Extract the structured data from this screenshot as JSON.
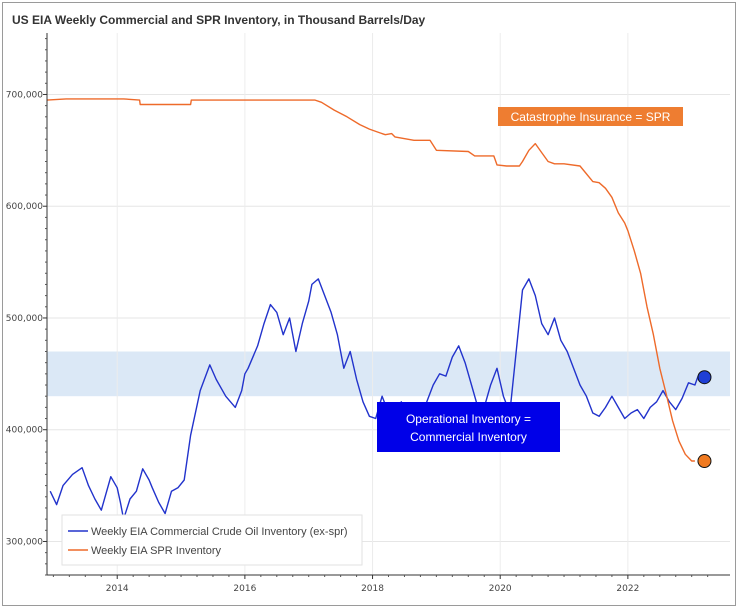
{
  "chart_data": {
    "type": "line",
    "title": "US EIA Weekly Commercial and SPR Inventory, in Thousand Barrels/Day",
    "xlabel": "",
    "ylabel": "",
    "xlim": [
      2012.9,
      2023.6
    ],
    "ylim": [
      270000,
      755000
    ],
    "x_ticks": [
      2014,
      2016,
      2018,
      2020,
      2022
    ],
    "x_tick_labels": [
      "2014",
      "2016",
      "2018",
      "2020",
      "2022"
    ],
    "y_ticks": [
      300000,
      400000,
      500000,
      600000,
      700000
    ],
    "y_tick_labels": [
      "300,000",
      "400,000",
      "500,000",
      "600,000",
      "700,000"
    ],
    "grid": true,
    "legend_position": "bottom-left",
    "highlight_band": {
      "y_from": 430000,
      "y_to": 470000,
      "color": "#dbe8f6"
    },
    "series": [
      {
        "name": "Weekly EIA Commercial Crude Oil Inventory (ex-spr)",
        "color": "#2233cc",
        "x": [
          2012.95,
          2013.05,
          2013.15,
          2013.3,
          2013.45,
          2013.55,
          2013.65,
          2013.75,
          2013.9,
          2014.0,
          2014.05,
          2014.1,
          2014.2,
          2014.3,
          2014.4,
          2014.5,
          2014.55,
          2014.65,
          2014.75,
          2014.85,
          2014.95,
          2015.05,
          2015.15,
          2015.3,
          2015.45,
          2015.55,
          2015.7,
          2015.85,
          2015.95,
          2016.0,
          2016.05,
          2016.2,
          2016.3,
          2016.4,
          2016.5,
          2016.6,
          2016.7,
          2016.8,
          2016.9,
          2017.0,
          2017.05,
          2017.15,
          2017.25,
          2017.35,
          2017.45,
          2017.55,
          2017.65,
          2017.75,
          2017.85,
          2017.95,
          2018.05,
          2018.15,
          2018.25,
          2018.35,
          2018.45,
          2018.55,
          2018.65,
          2018.75,
          2018.85,
          2018.95,
          2019.05,
          2019.15,
          2019.25,
          2019.35,
          2019.45,
          2019.55,
          2019.65,
          2019.75,
          2019.85,
          2019.95,
          2020.05,
          2020.15,
          2020.25,
          2020.35,
          2020.45,
          2020.55,
          2020.65,
          2020.75,
          2020.85,
          2020.95,
          2021.05,
          2021.15,
          2021.25,
          2021.35,
          2021.45,
          2021.55,
          2021.65,
          2021.75,
          2021.85,
          2021.95,
          2022.05,
          2022.15,
          2022.25,
          2022.35,
          2022.45,
          2022.55,
          2022.65,
          2022.75,
          2022.85,
          2022.95,
          2023.05,
          2023.1,
          2023.15
        ],
        "y": [
          345000,
          333000,
          350000,
          360000,
          366000,
          350000,
          338000,
          328000,
          358000,
          348000,
          335000,
          320000,
          338000,
          345000,
          365000,
          355000,
          348000,
          335000,
          325000,
          345000,
          348000,
          355000,
          395000,
          435000,
          458000,
          445000,
          430000,
          420000,
          435000,
          450000,
          455000,
          475000,
          495000,
          512000,
          505000,
          485000,
          500000,
          470000,
          495000,
          515000,
          530000,
          535000,
          520000,
          505000,
          485000,
          455000,
          470000,
          445000,
          425000,
          412000,
          410000,
          430000,
          415000,
          412000,
          425000,
          405000,
          410000,
          395000,
          425000,
          440000,
          450000,
          448000,
          465000,
          475000,
          460000,
          440000,
          420000,
          420000,
          440000,
          455000,
          430000,
          415000,
          470000,
          525000,
          535000,
          520000,
          495000,
          485000,
          500000,
          480000,
          470000,
          455000,
          440000,
          430000,
          415000,
          412000,
          420000,
          430000,
          420000,
          410000,
          415000,
          418000,
          410000,
          420000,
          425000,
          435000,
          425000,
          418000,
          428000,
          442000,
          440000,
          448000,
          447000
        ]
      },
      {
        "name": "Weekly EIA SPR Inventory",
        "color": "#ee6a2a",
        "x": [
          2012.9,
          2013.2,
          2013.5,
          2013.8,
          2014.1,
          2014.35,
          2014.36,
          2014.9,
          2015.15,
          2015.16,
          2016.2,
          2016.4,
          2016.8,
          2017.1,
          2017.2,
          2017.4,
          2017.6,
          2017.8,
          2017.95,
          2018.1,
          2018.2,
          2018.3,
          2018.35,
          2018.55,
          2018.65,
          2018.9,
          2019.0,
          2019.5,
          2019.6,
          2019.9,
          2019.95,
          2020.1,
          2020.3,
          2020.35,
          2020.45,
          2020.55,
          2020.65,
          2020.75,
          2020.85,
          2021.0,
          2021.25,
          2021.45,
          2021.55,
          2021.65,
          2021.75,
          2021.85,
          2021.95,
          2022.0,
          2022.1,
          2022.2,
          2022.3,
          2022.4,
          2022.5,
          2022.6,
          2022.7,
          2022.8,
          2022.9,
          2023.0,
          2023.05
        ],
        "y": [
          695000,
          696000,
          696000,
          696000,
          696000,
          695000,
          691000,
          691000,
          691000,
          695000,
          695000,
          695000,
          695000,
          695000,
          693000,
          686000,
          680000,
          673000,
          669000,
          666000,
          664000,
          665000,
          662000,
          660000,
          659000,
          659000,
          650000,
          649000,
          645000,
          645000,
          637000,
          636000,
          636000,
          640000,
          650000,
          656000,
          648000,
          640000,
          638000,
          638000,
          636000,
          622000,
          621000,
          616000,
          608000,
          594000,
          585000,
          578000,
          560000,
          540000,
          510000,
          485000,
          455000,
          432000,
          408000,
          390000,
          378000,
          372000,
          372000
        ]
      }
    ],
    "end_markers": [
      {
        "series": 0,
        "x": 2023.2,
        "y": 447000,
        "color": "#1f3fd6"
      },
      {
        "series": 1,
        "x": 2023.2,
        "y": 372000,
        "color": "#f07a20"
      }
    ],
    "annotations": [
      {
        "text": "Catastrophe Insurance = SPR",
        "fill": "#ee7d31"
      },
      {
        "lines": [
          "Operational Inventory =",
          "Commercial Inventory"
        ],
        "fill": "#0000e8"
      }
    ]
  }
}
